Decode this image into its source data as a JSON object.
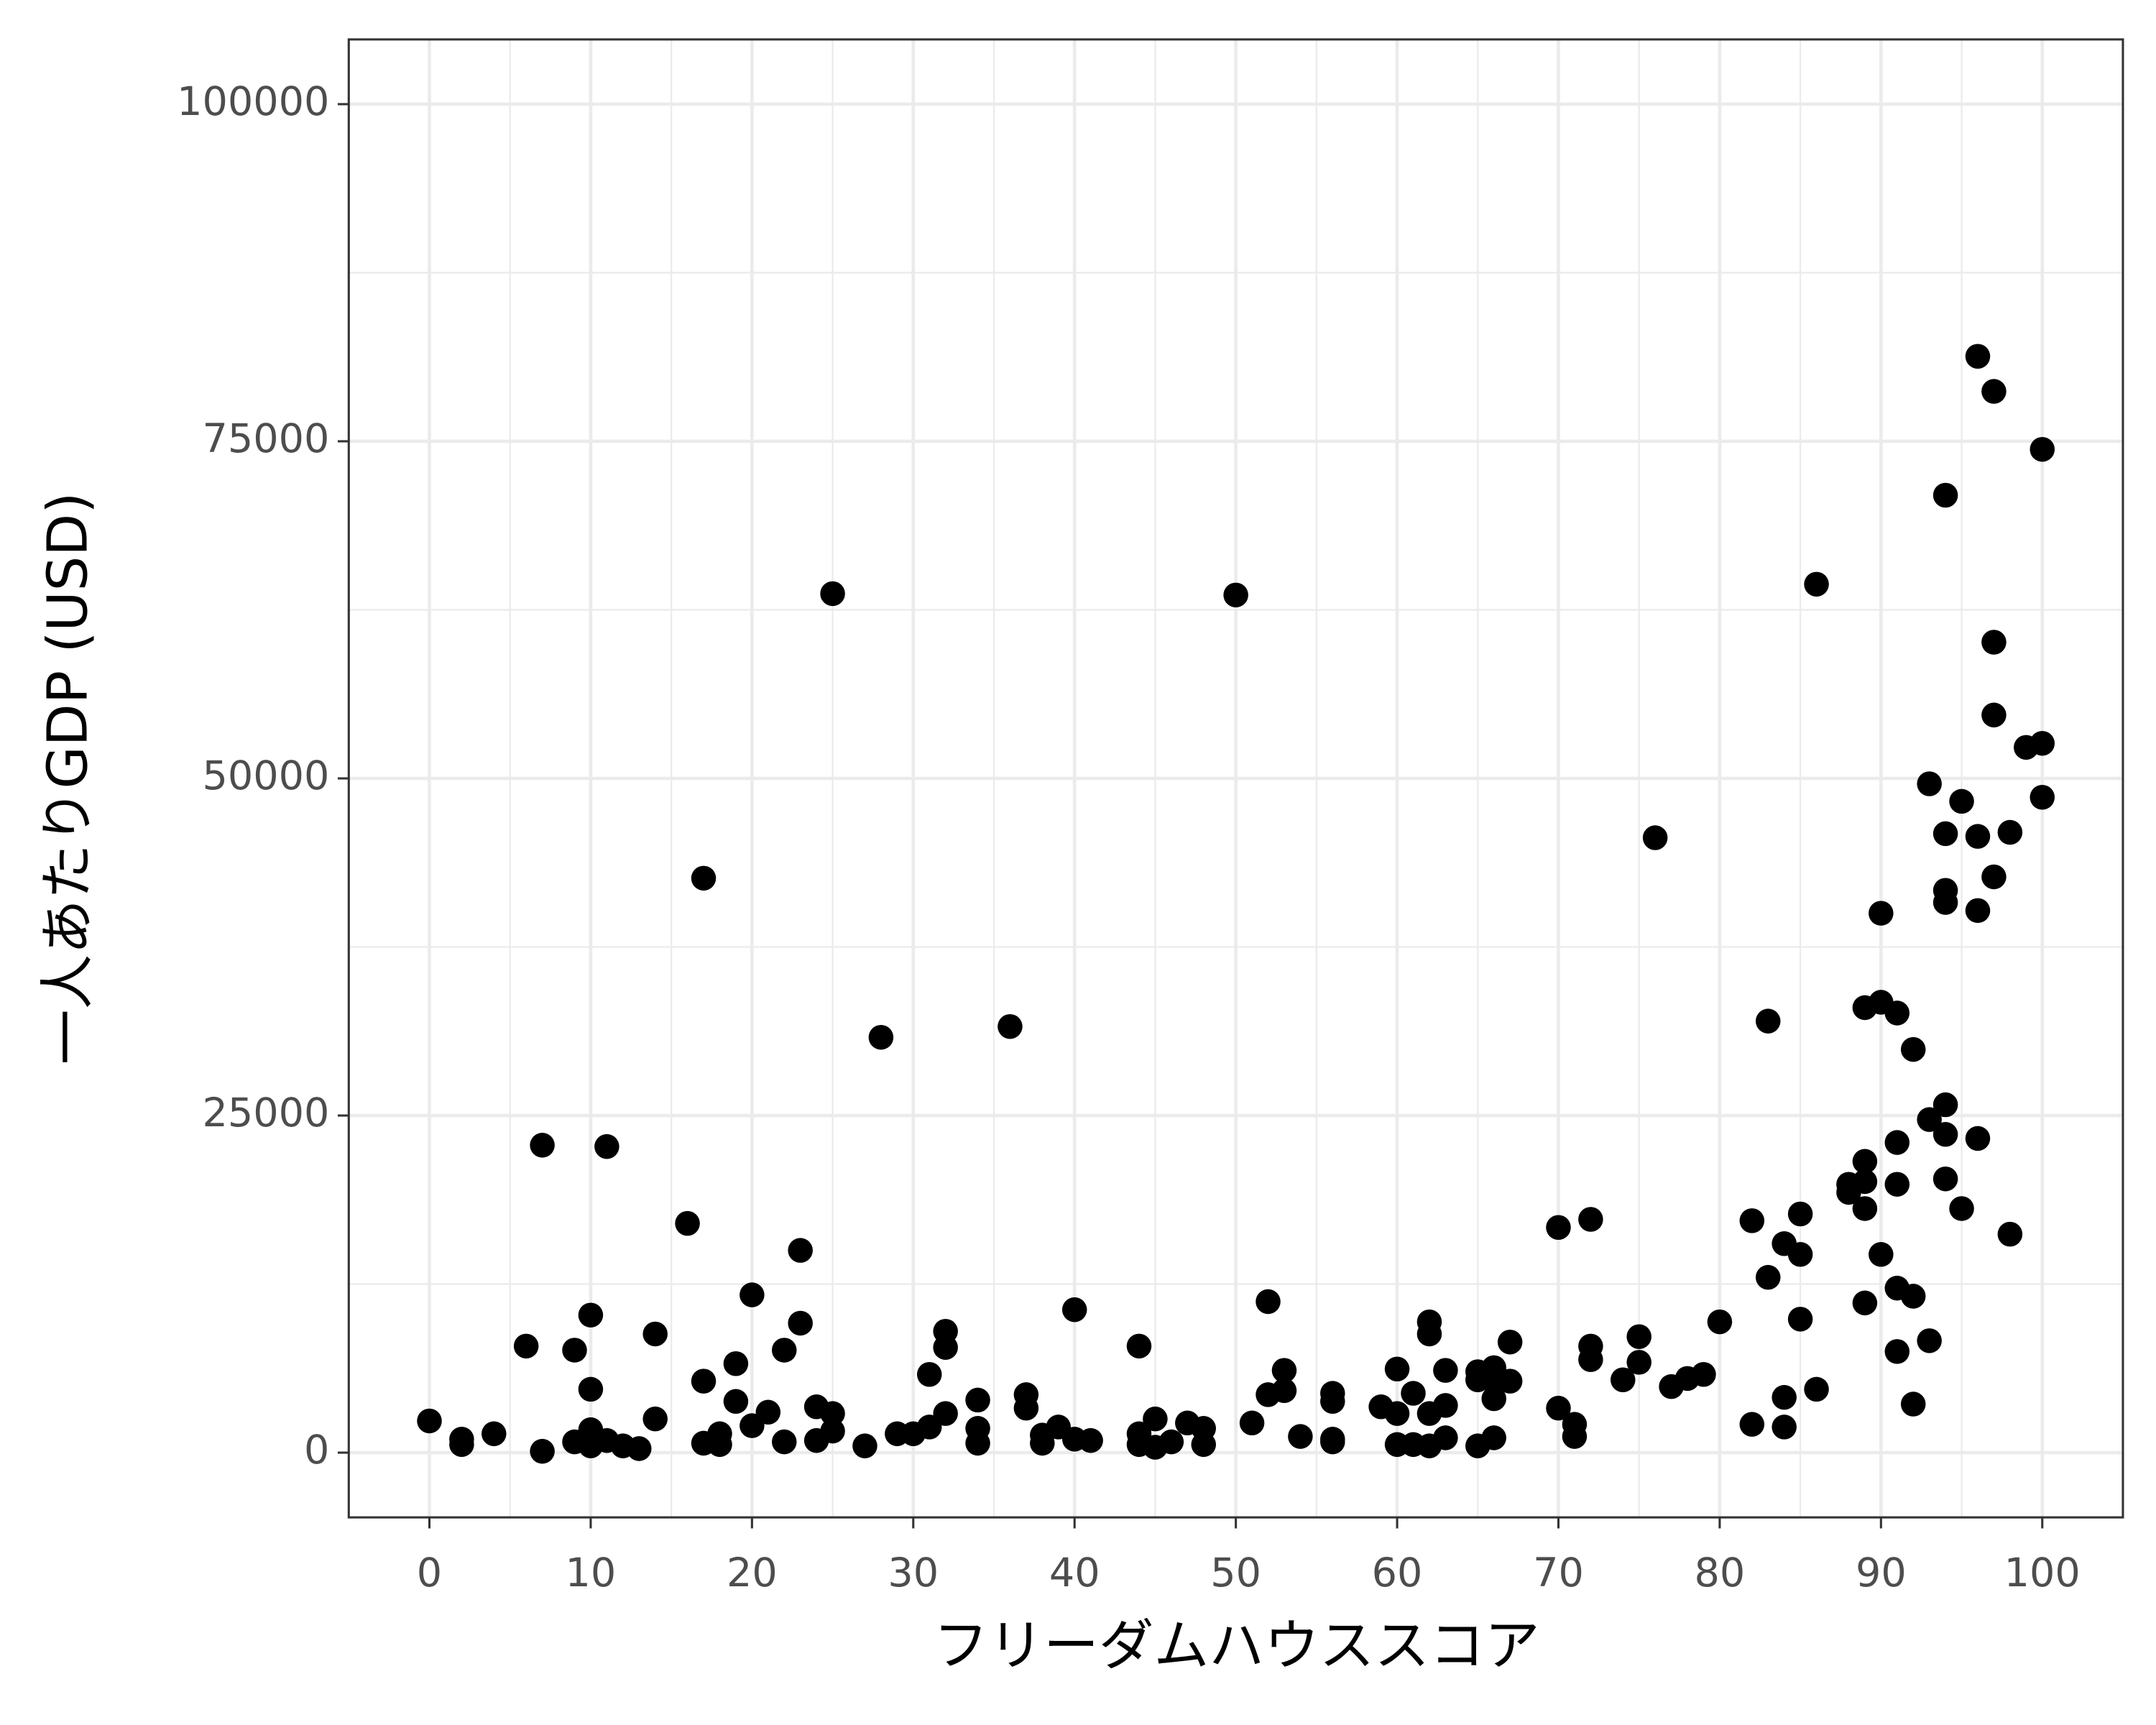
{
  "chart_data": {
    "type": "scatter",
    "x_label": "フリーダムハウススコア",
    "y_label": "一人あたりGDP (USD)",
    "color": "#000000",
    "grid": true,
    "xlim": [
      -5,
      105
    ],
    "ylim": [
      -4800,
      104800
    ],
    "xticks": [
      0,
      10,
      20,
      30,
      40,
      50,
      60,
      70,
      80,
      90,
      100
    ],
    "yticks": [
      0,
      25000,
      50000,
      75000,
      100000
    ],
    "x": [
      0,
      2,
      2,
      4,
      6,
      7,
      7,
      9,
      9,
      10,
      10,
      10,
      10,
      11,
      11,
      12,
      13,
      14,
      14,
      16,
      17,
      17,
      17,
      18,
      18,
      19,
      19,
      20,
      20,
      21,
      22,
      22,
      23,
      23,
      24,
      24,
      25,
      25,
      25,
      27,
      28,
      29,
      30,
      31,
      31,
      32,
      32,
      32,
      34,
      34,
      34,
      36,
      37,
      37,
      38,
      38,
      39,
      40,
      40,
      41,
      44,
      44,
      44,
      45,
      45,
      46,
      47,
      48,
      48,
      50,
      51,
      52,
      52,
      53,
      53,
      54,
      56,
      56,
      56,
      56,
      59,
      60,
      60,
      60,
      61,
      61,
      62,
      62,
      62,
      62,
      63,
      63,
      63,
      65,
      65,
      65,
      66,
      66,
      66,
      66,
      67,
      67,
      70,
      70,
      71,
      71,
      72,
      72,
      72,
      74,
      75,
      75,
      76,
      77,
      78,
      79,
      80,
      82,
      82,
      83,
      83,
      84,
      84,
      84,
      85,
      85,
      85,
      86,
      86,
      88,
      88,
      89,
      89,
      89,
      89,
      89,
      90,
      90,
      90,
      91,
      91,
      91,
      91,
      91,
      92,
      92,
      92,
      93,
      93,
      93,
      94,
      94,
      94,
      94,
      94,
      94,
      94,
      95,
      95,
      96,
      96,
      96,
      96,
      97,
      97,
      97,
      97,
      98,
      98,
      99,
      100,
      100,
      100
    ],
    "y": [
      2350,
      1000,
      600,
      1400,
      7900,
      22800,
      100,
      7600,
      800,
      10200,
      4700,
      1700,
      500,
      22700,
      900,
      500,
      300,
      8800,
      2500,
      17000,
      42600,
      5300,
      700,
      1400,
      600,
      6600,
      3800,
      11700,
      2000,
      3000,
      7600,
      800,
      15000,
      9600,
      3400,
      900,
      63700,
      2900,
      1600,
      500,
      30800,
      1400,
      1400,
      5800,
      1900,
      9000,
      7800,
      2900,
      3900,
      1800,
      700,
      31600,
      4300,
      3300,
      1300,
      700,
      1900,
      10600,
      1000,
      900,
      7900,
      1400,
      600,
      2500,
      400,
      800,
      2200,
      1800,
      600,
      63600,
      2200,
      11200,
      4300,
      6100,
      4600,
      1200,
      4400,
      3800,
      1000,
      800,
      3400,
      6200,
      2900,
      600,
      4400,
      600,
      9700,
      8800,
      2900,
      500,
      6100,
      3500,
      1100,
      6000,
      5400,
      500,
      6300,
      5300,
      4000,
      1100,
      8200,
      5300,
      16700,
      3300,
      2100,
      1200,
      17300,
      7900,
      6900,
      5400,
      8600,
      6700,
      45600,
      4900,
      5500,
      5800,
      9700,
      17200,
      2100,
      32000,
      13000,
      15500,
      4100,
      1900,
      17700,
      14700,
      9900,
      64400,
      4700,
      19900,
      19300,
      33000,
      21600,
      20100,
      18100,
      11100,
      40000,
      33400,
      14700,
      32600,
      23000,
      19900,
      12200,
      7500,
      29900,
      11600,
      3600,
      49600,
      24700,
      8300,
      71000,
      45900,
      41700,
      40800,
      25800,
      23600,
      20300,
      48300,
      18100,
      81300,
      45700,
      40200,
      23300,
      78700,
      60100,
      54700,
      42700,
      46000,
      16200,
      52300,
      74400,
      52600,
      48600
    ]
  }
}
